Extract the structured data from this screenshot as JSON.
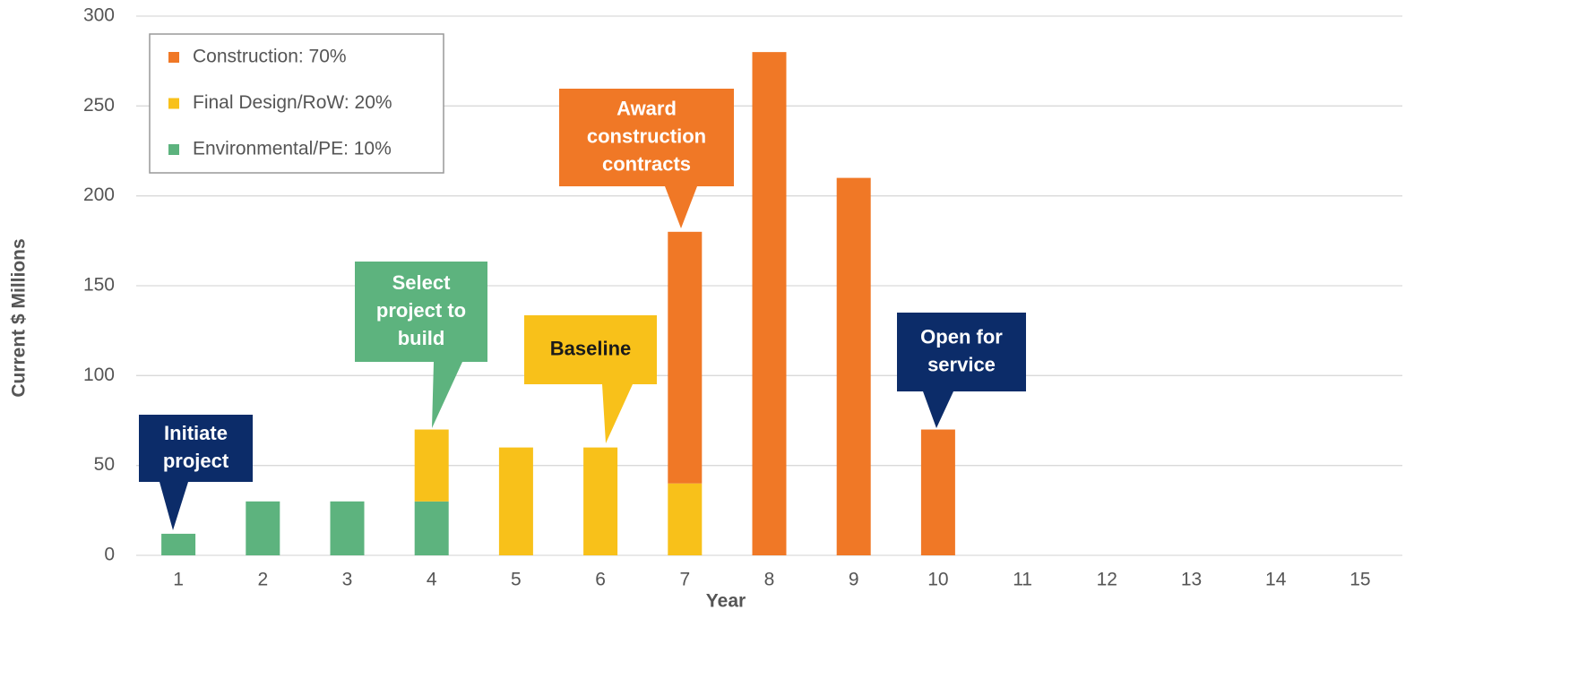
{
  "chart_data": {
    "type": "stacked_bar",
    "categories": [
      "1",
      "2",
      "3",
      "4",
      "5",
      "6",
      "7",
      "8",
      "9",
      "10",
      "11",
      "12",
      "13",
      "14",
      "15"
    ],
    "series": [
      {
        "name": "Environmental/PE: 10%",
        "color": "#5db37e",
        "values": [
          12,
          30,
          30,
          30,
          0,
          0,
          0,
          0,
          0,
          0,
          0,
          0,
          0,
          0,
          0
        ]
      },
      {
        "name": "Final Design/RoW: 20%",
        "color": "#f8c11a",
        "values": [
          0,
          0,
          0,
          40,
          60,
          60,
          40,
          0,
          0,
          0,
          0,
          0,
          0,
          0,
          0
        ]
      },
      {
        "name": "Construction: 70%",
        "color": "#f07826",
        "values": [
          0,
          0,
          0,
          0,
          0,
          0,
          140,
          280,
          210,
          70,
          0,
          0,
          0,
          0,
          0
        ]
      }
    ],
    "ylim": [
      0,
      300
    ],
    "yticks": [
      0,
      50,
      100,
      150,
      200,
      250,
      300
    ],
    "grid": true,
    "xlabel": "Year",
    "ylabel": "Current $ Millions",
    "annotations": [
      {
        "lines": [
          "Initiate",
          "project"
        ],
        "color": "#0c2c69",
        "text_color": "#ffffff"
      },
      {
        "lines": [
          "Select",
          "project to",
          "build"
        ],
        "color": "#5db37e",
        "text_color": "#ffffff"
      },
      {
        "lines": [
          "Baseline"
        ],
        "color": "#f8c11a",
        "text_color": "#1a1a1a"
      },
      {
        "lines": [
          "Award",
          "construction",
          "contracts"
        ],
        "color": "#f07826",
        "text_color": "#ffffff"
      },
      {
        "lines": [
          "Open for",
          "service"
        ],
        "color": "#0c2c69",
        "text_color": "#ffffff"
      }
    ]
  }
}
